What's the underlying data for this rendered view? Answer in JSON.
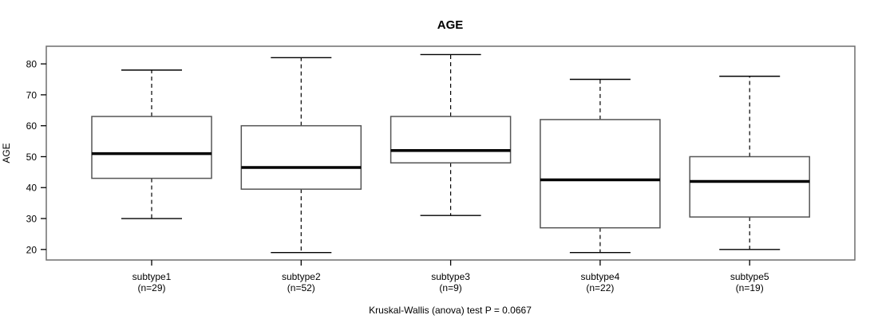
{
  "figure": {
    "title": "AGE",
    "y_axis_label": "AGE",
    "caption": "Kruskal-Wallis (anova) test P = 0.0667"
  },
  "chart_data": {
    "type": "boxplot",
    "title": "AGE",
    "xlabel": "",
    "ylabel": "AGE",
    "caption": "Kruskal-Wallis (anova) test P = 0.0667",
    "ylim": [
      16.6,
      85.7
    ],
    "y_ticks": [
      20,
      30,
      40,
      50,
      60,
      70,
      80
    ],
    "grid": false,
    "legend": "none",
    "categories": [
      "subtype1",
      "subtype2",
      "subtype3",
      "subtype4",
      "subtype5"
    ],
    "groups": [
      {
        "label": "subtype1",
        "sublabel": "(n=29)",
        "n": 29,
        "whisker_low": 30,
        "q1": 43,
        "median": 51,
        "q3": 63,
        "whisker_high": 78
      },
      {
        "label": "subtype2",
        "sublabel": "(n=52)",
        "n": 52,
        "whisker_low": 19,
        "q1": 39.5,
        "median": 46.5,
        "q3": 60,
        "whisker_high": 82
      },
      {
        "label": "subtype3",
        "sublabel": "(n=9)",
        "n": 9,
        "whisker_low": 31,
        "q1": 48,
        "median": 52,
        "q3": 63,
        "whisker_high": 83
      },
      {
        "label": "subtype4",
        "sublabel": "(n=22)",
        "n": 22,
        "whisker_low": 19,
        "q1": 27,
        "median": 42.5,
        "q3": 62,
        "whisker_high": 75
      },
      {
        "label": "subtype5",
        "sublabel": "(n=19)",
        "n": 19,
        "whisker_low": 20,
        "q1": 30.5,
        "median": 42,
        "q3": 50,
        "whisker_high": 76
      }
    ],
    "colors": {
      "background": "#ffffff",
      "frame_stroke": "#6e6e6e",
      "box_stroke": "#555555",
      "box_fill": "#ffffff",
      "median": "#000000",
      "whisker": "#000000",
      "tick": "#000000",
      "text": "#000000"
    }
  }
}
